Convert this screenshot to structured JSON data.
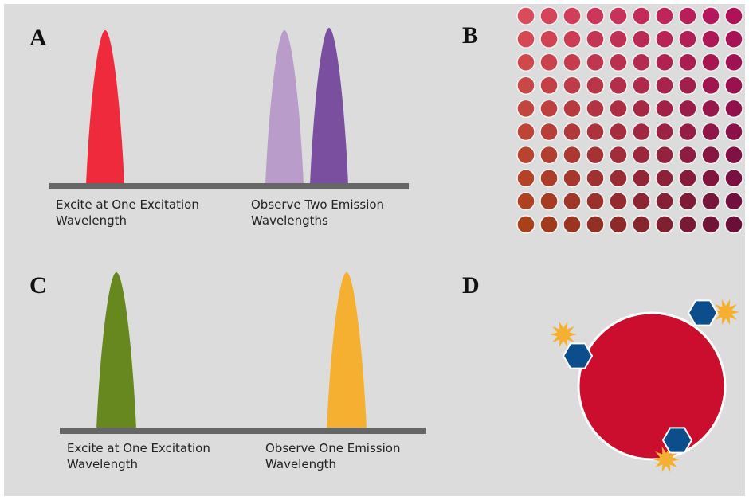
{
  "panels": [
    {
      "label": "A",
      "left_caption": [
        "Excite at One Excitation",
        "Wavelength"
      ],
      "right_caption": [
        "Observe Two Emission",
        "Wavelengths"
      ]
    },
    {
      "label": "B"
    },
    {
      "label": "C",
      "left_caption": [
        "Excite at One Excitation",
        "Wavelength"
      ],
      "right_caption": [
        "Observe One Emission",
        "Wavelength"
      ]
    },
    {
      "label": "D"
    }
  ]
}
